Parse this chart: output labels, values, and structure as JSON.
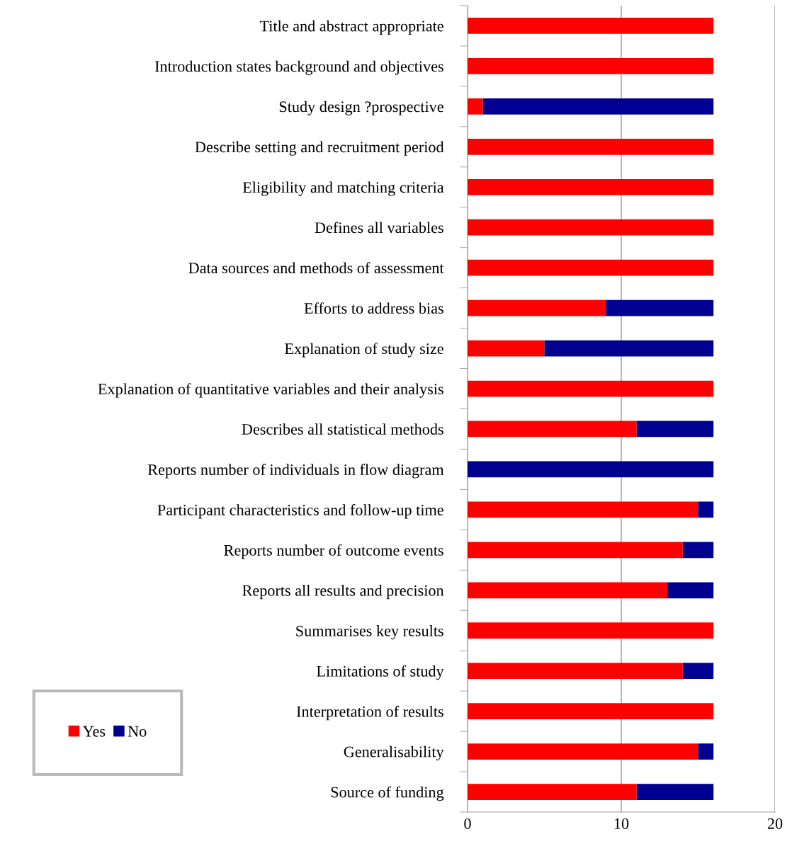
{
  "chart_data": {
    "type": "bar",
    "orientation": "horizontal",
    "stacked": true,
    "categories": [
      "Title and abstract appropriate",
      "Introduction states background and objectives",
      "Study design ?prospective",
      "Describe setting and recruitment period",
      "Eligibility and matching criteria",
      "Defines all variables",
      "Data sources and methods of assessment",
      "Efforts to address bias",
      "Explanation of study size",
      "Explanation of quantitative variables and their analysis",
      "Describes all statistical methods",
      "Reports number of individuals in flow diagram",
      "Participant characteristics and follow-up time",
      "Reports number of outcome events",
      "Reports all results and precision",
      "Summarises key results",
      "Limitations of study",
      "Interpretation of results",
      "Generalisability",
      "Source of funding"
    ],
    "series": [
      {
        "name": "Yes",
        "color": "#ff0000",
        "values": [
          16,
          16,
          1,
          16,
          16,
          16,
          16,
          9,
          5,
          16,
          11,
          0,
          15,
          14,
          13,
          16,
          14,
          16,
          15,
          11
        ]
      },
      {
        "name": "No",
        "color": "#000090",
        "values": [
          0,
          0,
          15,
          0,
          0,
          0,
          0,
          7,
          11,
          0,
          5,
          16,
          1,
          2,
          3,
          0,
          2,
          0,
          1,
          5
        ]
      }
    ],
    "xlim": [
      0,
      20
    ],
    "xticks": [
      0,
      10,
      20
    ],
    "grid": "x",
    "legend": "bottom left"
  }
}
